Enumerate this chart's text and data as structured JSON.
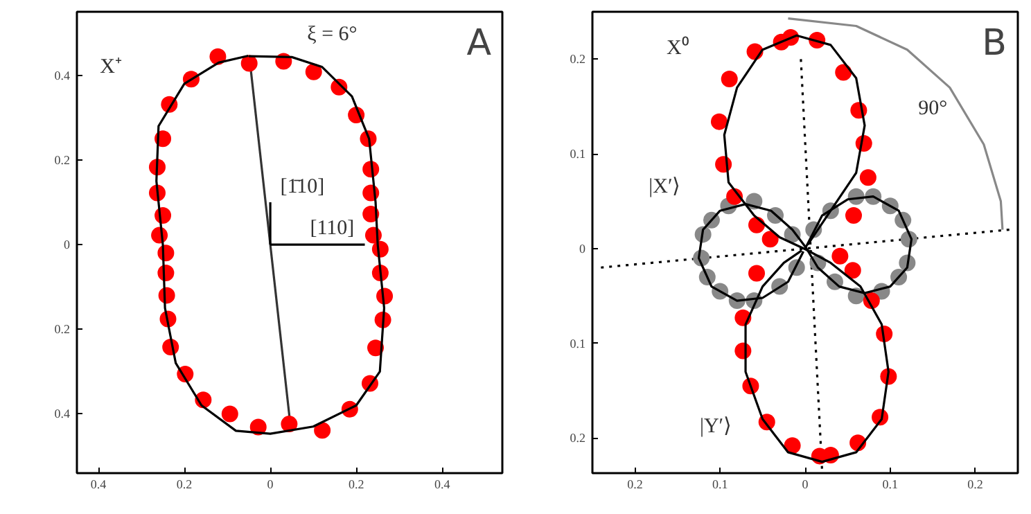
{
  "chart_data": [
    {
      "type": "scatter",
      "xlim": [
        -0.45,
        0.54
      ],
      "ylim": [
        -0.54,
        0.55
      ],
      "xticks": [
        {
          "value": -0.4,
          "label": "0.4"
        },
        {
          "value": -0.2,
          "label": "0.2"
        },
        0,
        0.2,
        0.4
      ],
      "yticks": [
        {
          "value": -0.4,
          "label": "0.4"
        },
        {
          "value": -0.2,
          "label": "0.2"
        },
        0,
        0.2,
        0.4
      ],
      "annotations": [
        "A",
        "X⁺",
        "ξ = 6°",
        "[1̄10]",
        "[110]"
      ],
      "series": [
        {
          "type": "line",
          "color": "#333333",
          "line_style": "solid",
          "x": [
            -0.045,
            0.045
          ],
          "values": [
            0.41,
            -0.41
          ]
        },
        {
          "type": "line",
          "color": "#000000",
          "line_style": "solid",
          "x": [
            0,
            0.22
          ],
          "values": [
            0,
            0
          ]
        },
        {
          "type": "line",
          "color": "#000000",
          "line_style": "solid",
          "x": [
            0,
            0
          ],
          "values": [
            0,
            0.1
          ]
        },
        {
          "type": "scatter",
          "color": "#ff0000",
          "marker": "circle",
          "x": [
            -0.122,
            -0.049,
            0.031,
            0.101,
            0.16,
            0.2,
            0.228,
            0.234,
            0.234,
            0.234,
            0.24,
            0.256,
            0.256,
            0.266,
            0.262,
            0.245,
            0.232,
            0.185,
            0.121,
            0.044,
            -0.028,
            -0.094,
            -0.156,
            -0.198,
            -0.232,
            -0.238,
            -0.241,
            -0.243,
            -0.243,
            -0.258,
            -0.25,
            -0.263,
            -0.263,
            -0.25,
            -0.235,
            -0.184
          ],
          "values": [
            0.444,
            0.428,
            0.433,
            0.408,
            0.372,
            0.306,
            0.25,
            0.178,
            0.122,
            0.072,
            0.022,
            -0.011,
            -0.067,
            -0.122,
            -0.178,
            -0.244,
            -0.328,
            -0.389,
            -0.439,
            -0.424,
            -0.431,
            -0.4,
            -0.367,
            -0.306,
            -0.242,
            -0.176,
            -0.12,
            -0.067,
            -0.02,
            0.022,
            0.069,
            0.122,
            0.183,
            0.25,
            0.331,
            0.391
          ]
        },
        {
          "type": "line",
          "color": "#000000",
          "line_style": "solid",
          "x": [
            -0.05,
            0.05,
            0.12,
            0.19,
            0.23,
            0.245,
            0.25,
            0.265,
            0.255,
            0.2,
            0.1,
            0,
            -0.08,
            -0.16,
            -0.22,
            -0.245,
            -0.25,
            -0.265,
            -0.26,
            -0.2,
            -0.12,
            -0.051
          ],
          "values": [
            0.445,
            0.443,
            0.42,
            0.35,
            0.25,
            0.1,
            0,
            -0.15,
            -0.3,
            -0.38,
            -0.43,
            -0.447,
            -0.44,
            -0.38,
            -0.28,
            -0.15,
            0,
            0.15,
            0.28,
            0.38,
            0.43,
            0.446
          ]
        }
      ]
    },
    {
      "type": "scatter",
      "xlim": [
        -0.25,
        0.25
      ],
      "ylim": [
        -0.237,
        0.25
      ],
      "xticks": [
        {
          "value": -0.2,
          "label": "0.2"
        },
        {
          "value": -0.1,
          "label": "0.1"
        },
        0,
        0.1,
        0.2
      ],
      "yticks": [
        {
          "value": -0.2,
          "label": "0.2"
        },
        {
          "value": -0.1,
          "label": "0.1"
        },
        0,
        0.1,
        0.2
      ],
      "annotations": [
        "B",
        "X⁰",
        "90°",
        "|X′⟩",
        "|Y′⟩"
      ],
      "series": [
        {
          "type": "line",
          "color": "#000000",
          "line_style": "dotted",
          "x": [
            -0.005,
            0.02
          ],
          "values": [
            0.2,
            -0.235
          ]
        },
        {
          "type": "line",
          "color": "#000000",
          "line_style": "dotted",
          "x": [
            -0.24,
            0.24
          ],
          "values": [
            -0.02,
            0.02
          ]
        },
        {
          "type": "line",
          "color": "#888888",
          "line_style": "solid",
          "x": [
            -0.02,
            0.06,
            0.12,
            0.17,
            0.21,
            0.23,
            0.232
          ],
          "values": [
            0.243,
            0.235,
            0.21,
            0.17,
            0.11,
            0.05,
            0.02
          ]
        },
        {
          "type": "scatter",
          "color": "#888888",
          "marker": "circle",
          "x": [
            0.01,
            0.03,
            0.06,
            0.08,
            0.1,
            0.115,
            0.122,
            0.12,
            0.11,
            0.09,
            0.06,
            0.035,
            0.015,
            -0.01,
            -0.03,
            -0.06,
            -0.08,
            -0.1,
            -0.115,
            -0.122,
            -0.12,
            -0.11,
            -0.09,
            -0.06,
            -0.035,
            -0.015
          ],
          "values": [
            0.02,
            0.04,
            0.055,
            0.055,
            0.045,
            0.03,
            0.01,
            -0.015,
            -0.03,
            -0.045,
            -0.05,
            -0.035,
            -0.015,
            -0.02,
            -0.04,
            -0.055,
            -0.055,
            -0.045,
            -0.03,
            -0.01,
            0.015,
            0.03,
            0.045,
            0.05,
            0.035,
            0.015
          ]
        },
        {
          "type": "scatter",
          "color": "#ff0000",
          "marker": "circle",
          "x": [
            -0.017,
            0.014,
            -0.028,
            -0.059,
            0.045,
            -0.089,
            0.063,
            -0.101,
            0.069,
            -0.096,
            0.074,
            -0.083,
            0.057,
            -0.057,
            -0.041,
            0.041,
            0.056,
            -0.057,
            -0.073,
            0.078,
            0.093,
            -0.073,
            -0.064,
            0.098,
            0.088,
            -0.045,
            -0.015,
            0.017,
            0.03,
            0.062
          ],
          "values": [
            0.223,
            0.22,
            0.218,
            0.208,
            0.186,
            0.179,
            0.146,
            0.134,
            0.111,
            0.089,
            0.075,
            0.055,
            0.035,
            0.025,
            0.01,
            -0.008,
            -0.023,
            -0.026,
            -0.073,
            -0.055,
            -0.09,
            -0.108,
            -0.145,
            -0.135,
            -0.178,
            -0.183,
            -0.208,
            -0.219,
            -0.218,
            -0.205
          ]
        },
        {
          "type": "line",
          "color": "#000000",
          "line_style": "solid",
          "x": [
            0,
            0.02,
            0.05,
            0.08,
            0.11,
            0.125,
            0.12,
            0.1,
            0.07,
            0.04,
            0.015,
            0.001,
            -0.015,
            -0.04,
            -0.07,
            -0.1,
            -0.12,
            -0.125,
            -0.11,
            -0.08,
            -0.05,
            -0.02,
            -0.002
          ],
          "values": [
            0,
            0.035,
            0.052,
            0.055,
            0.04,
            0.01,
            -0.02,
            -0.04,
            -0.047,
            -0.04,
            -0.02,
            0.001,
            0.02,
            0.04,
            0.047,
            0.04,
            0.02,
            -0.01,
            -0.04,
            -0.055,
            -0.052,
            -0.035,
            -0.003
          ]
        },
        {
          "type": "line",
          "color": "#000000",
          "line_style": "solid",
          "x": [
            0.003,
            0.03,
            0.06,
            0.07,
            0.06,
            0.03,
            -0.01,
            -0.05,
            -0.08,
            -0.095,
            -0.09,
            -0.06,
            -0.03,
            0.001,
            0.03,
            0.065,
            0.09,
            0.098,
            0.09,
            0.06,
            0.02,
            -0.02,
            -0.05,
            -0.07,
            -0.07,
            -0.05,
            -0.025,
            -0.004
          ],
          "values": [
            0.004,
            0.04,
            0.08,
            0.13,
            0.18,
            0.215,
            0.225,
            0.21,
            0.17,
            0.12,
            0.07,
            0.035,
            0.012,
            -0.001,
            -0.015,
            -0.04,
            -0.08,
            -0.13,
            -0.18,
            -0.215,
            -0.225,
            -0.215,
            -0.18,
            -0.13,
            -0.08,
            -0.04,
            -0.015,
            -0.002
          ]
        }
      ]
    }
  ]
}
